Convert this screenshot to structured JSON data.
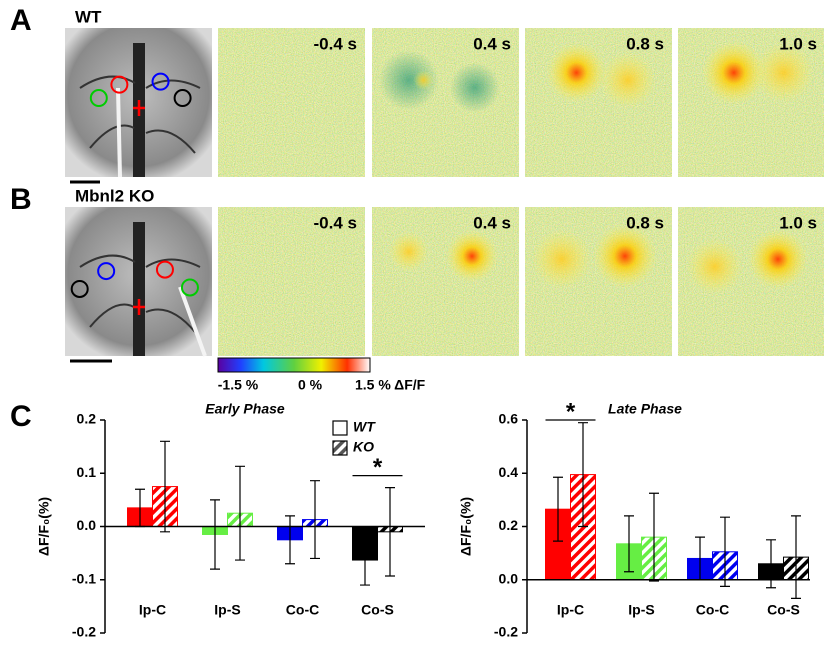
{
  "panels": [
    {
      "label": "A",
      "genotype": "WT",
      "times": [
        "-0.4 s",
        "0.4 s",
        "0.8 s",
        "1.0 s"
      ]
    },
    {
      "label": "B",
      "genotype": "Mbnl2 KO",
      "times": [
        "-0.4 s",
        "0.4 s",
        "0.8 s",
        "1.0 s"
      ]
    }
  ],
  "colorbar": {
    "labels": [
      "-1.5 %",
      "0 %",
      "1.5 % ΔF/F"
    ]
  },
  "panel_c_label": "C",
  "chart_data": [
    {
      "type": "bar",
      "title": "Early Phase",
      "y_label": "ΔF/F₀(%)",
      "categories": [
        "Ip-C",
        "Ip-S",
        "Co-C",
        "Co-S"
      ],
      "series": [
        {
          "name": "WT",
          "colors": [
            "#ff0000",
            "#66ee44",
            "#0000ee",
            "#000000"
          ],
          "hatched": false,
          "values": [
            0.035,
            -0.015,
            -0.025,
            -0.063
          ],
          "errors": [
            0.035,
            0.065,
            0.045,
            0.047
          ]
        },
        {
          "name": "KO",
          "colors": [
            "#ff0000",
            "#66ee44",
            "#0000ee",
            "#000000"
          ],
          "hatched": true,
          "values": [
            0.075,
            0.025,
            0.013,
            -0.01
          ],
          "errors": [
            0.085,
            0.088,
            0.073,
            0.083
          ]
        }
      ],
      "annotations": [
        {
          "text": "*",
          "category": "Co-S"
        }
      ],
      "legend": true,
      "ylim": [
        -0.2,
        0.2
      ],
      "yticks": [
        -0.2,
        -0.1,
        {
          "value": 0,
          "label": "0.0"
        },
        0.1,
        0.2
      ]
    },
    {
      "type": "bar",
      "title": "Late Phase",
      "y_label": "ΔF/F₀(%)",
      "categories": [
        "Ip-C",
        "Ip-S",
        "Co-C",
        "Co-S"
      ],
      "series": [
        {
          "name": "WT",
          "colors": [
            "#ff0000",
            "#66ee44",
            "#0000ee",
            "#000000"
          ],
          "hatched": false,
          "values": [
            0.265,
            0.135,
            0.08,
            0.06
          ],
          "errors": [
            0.12,
            0.105,
            0.08,
            0.09
          ]
        },
        {
          "name": "KO",
          "colors": [
            "#ff0000",
            "#66ee44",
            "#0000ee",
            "#000000"
          ],
          "hatched": true,
          "values": [
            0.395,
            0.16,
            0.105,
            0.085
          ],
          "errors": [
            0.195,
            0.165,
            0.13,
            0.155
          ]
        }
      ],
      "annotations": [
        {
          "text": "*",
          "category": "Ip-C"
        }
      ],
      "legend": false,
      "ylim": [
        -0.2,
        0.6
      ],
      "yticks": [
        -0.2,
        {
          "value": 0,
          "label": "0.0"
        },
        0.2,
        0.4,
        0.6
      ]
    }
  ]
}
